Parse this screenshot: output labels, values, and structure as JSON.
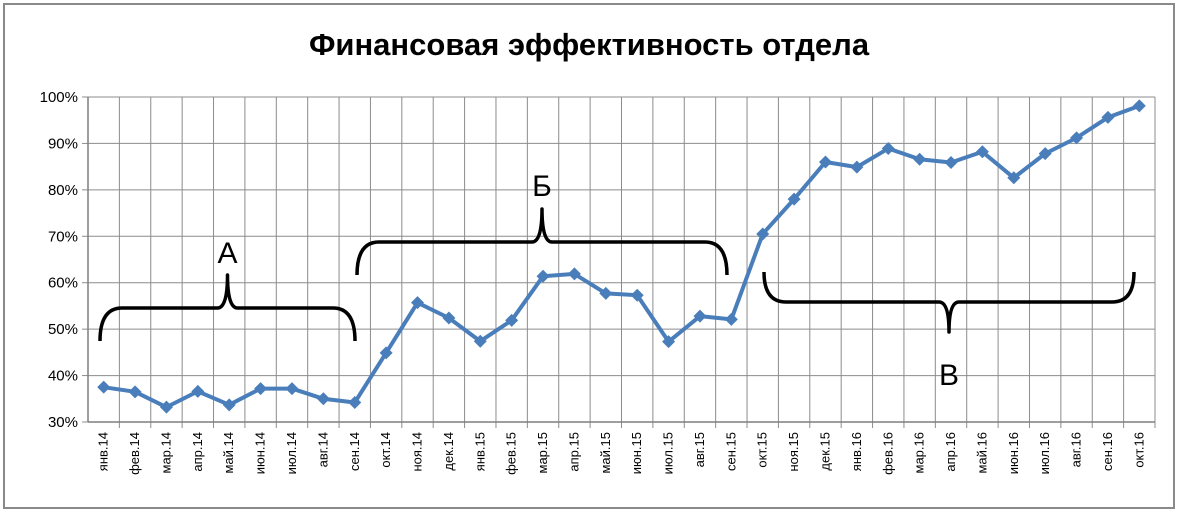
{
  "chart_data": {
    "type": "line",
    "title": "Финансовая эффективность отдела",
    "xlabel": "",
    "ylabel": "",
    "ylim": [
      30,
      100
    ],
    "y_tick_values": [
      30,
      40,
      50,
      60,
      70,
      80,
      90,
      100
    ],
    "y_tick_labels": [
      "30%",
      "40%",
      "50%",
      "60%",
      "70%",
      "80%",
      "90%",
      "100%"
    ],
    "grid": true,
    "legend": "none",
    "categories": [
      "янв.14",
      "фев.14",
      "мар.14",
      "апр.14",
      "май.14",
      "июн.14",
      "июл.14",
      "авг.14",
      "сен.14",
      "окт.14",
      "ноя.14",
      "дек.14",
      "янв.15",
      "фев.15",
      "мар.15",
      "апр.15",
      "май.15",
      "июн.15",
      "июл.15",
      "авг.15",
      "сен.15",
      "окт.15",
      "ноя.15",
      "дек.15",
      "янв.16",
      "фев.16",
      "мар.16",
      "апр.16",
      "май.16",
      "июн.16",
      "июл.16",
      "авг.16",
      "сен.16",
      "окт.16"
    ],
    "series": [
      {
        "color": "#4a7ebb",
        "values": [
          37.5,
          36.5,
          33.2,
          36.6,
          33.7,
          37.2,
          37.2,
          35.0,
          34.2,
          44.9,
          55.7,
          52.4,
          47.4,
          51.9,
          61.4,
          61.9,
          57.7,
          57.3,
          47.3,
          52.8,
          52.1,
          70.5,
          78.0,
          86.0,
          84.9,
          88.9,
          86.6,
          85.9,
          88.2,
          82.6,
          87.8,
          91.2,
          95.6,
          98.1
        ]
      }
    ],
    "annotations": [
      {
        "label": "А",
        "from_category": 0,
        "to_category": 8,
        "side": "above"
      },
      {
        "label": "Б",
        "from_category": 9,
        "to_category": 20,
        "side": "above"
      },
      {
        "label": "В",
        "from_category": 21,
        "to_category": 33,
        "side": "below"
      }
    ]
  }
}
